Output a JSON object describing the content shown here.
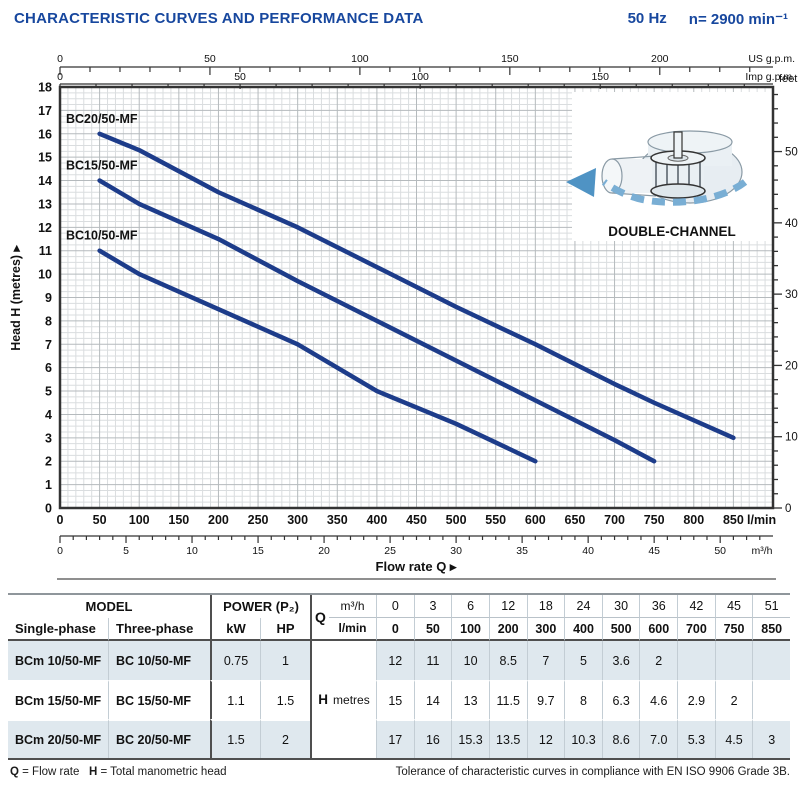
{
  "header": {
    "title": "CHARACTERISTIC CURVES AND PERFORMANCE DATA",
    "frequency": "50 Hz",
    "speed": "n= 2900 min⁻¹"
  },
  "chart_data": {
    "type": "line",
    "title": "",
    "xlabel": "Flow rate  Q",
    "ylabel": "Head H  (metres)",
    "x_unit_primary": "l/min",
    "ylim": [
      0,
      18
    ],
    "xlim_lmin": [
      0,
      900
    ],
    "grid": "on",
    "axes": {
      "bottom_primary": {
        "unit": "l/min",
        "ticks": [
          0,
          50,
          100,
          150,
          200,
          250,
          300,
          350,
          400,
          450,
          500,
          550,
          600,
          650,
          700,
          750,
          800,
          850
        ]
      },
      "bottom_secondary": {
        "unit": "m³/h",
        "ticks": [
          0,
          5,
          10,
          15,
          20,
          25,
          30,
          35,
          40,
          45,
          50
        ]
      },
      "top_primary": {
        "unit": "US g.p.m.",
        "ticks": [
          0,
          50,
          100,
          150,
          200
        ]
      },
      "top_secondary": {
        "unit": "Imp g.p.m.",
        "ticks": [
          0,
          50,
          100,
          150
        ]
      },
      "left": {
        "label": "Head H  (metres)",
        "ticks": [
          0,
          1,
          2,
          3,
          4,
          5,
          6,
          7,
          8,
          9,
          10,
          11,
          12,
          13,
          14,
          15,
          16,
          17,
          18
        ]
      },
      "right": {
        "unit": "feet",
        "ticks": [
          0,
          10,
          20,
          30,
          40,
          50
        ]
      }
    },
    "series": [
      {
        "name": "BC20/50-MF",
        "points": [
          [
            50,
            16
          ],
          [
            100,
            15.3
          ],
          [
            200,
            13.5
          ],
          [
            300,
            12
          ],
          [
            400,
            10.3
          ],
          [
            500,
            8.6
          ],
          [
            600,
            7.0
          ],
          [
            700,
            5.3
          ],
          [
            750,
            4.5
          ],
          [
            850,
            3
          ]
        ]
      },
      {
        "name": "BC15/50-MF",
        "points": [
          [
            50,
            14
          ],
          [
            100,
            13
          ],
          [
            200,
            11.5
          ],
          [
            300,
            9.7
          ],
          [
            400,
            8
          ],
          [
            500,
            6.3
          ],
          [
            600,
            4.6
          ],
          [
            700,
            2.9
          ],
          [
            750,
            2
          ]
        ]
      },
      {
        "name": "BC10/50-MF",
        "points": [
          [
            50,
            11
          ],
          [
            100,
            10
          ],
          [
            200,
            8.5
          ],
          [
            300,
            7
          ],
          [
            400,
            5
          ],
          [
            500,
            3.6
          ],
          [
            600,
            2
          ]
        ]
      }
    ],
    "curve_color": "#1d3c8a",
    "inset_caption": "DOUBLE-CHANNEL"
  },
  "table": {
    "model_header": "MODEL",
    "power_header": "POWER (P₂)",
    "col_single": "Single-phase",
    "col_three": "Three-phase",
    "col_kw": "kW",
    "col_hp": "HP",
    "q_label": "Q",
    "q_unit_top": "m³/h",
    "q_unit_bottom": "l/min",
    "h_label": "H",
    "h_unit": "metres",
    "q_m3h": [
      "0",
      "3",
      "6",
      "12",
      "18",
      "24",
      "30",
      "36",
      "42",
      "45",
      "51"
    ],
    "q_lmin": [
      "0",
      "50",
      "100",
      "200",
      "300",
      "400",
      "500",
      "600",
      "700",
      "750",
      "850"
    ],
    "rows": [
      {
        "single": "BCm 10/50-MF",
        "three": "BC 10/50-MF",
        "kw": "0.75",
        "hp": "1",
        "h": [
          "12",
          "11",
          "10",
          "8.5",
          "7",
          "5",
          "3.6",
          "2",
          "",
          "",
          ""
        ]
      },
      {
        "single": "BCm 15/50-MF",
        "three": "BC 15/50-MF",
        "kw": "1.1",
        "hp": "1.5",
        "h": [
          "15",
          "14",
          "13",
          "11.5",
          "9.7",
          "8",
          "6.3",
          "4.6",
          "2.9",
          "2",
          ""
        ]
      },
      {
        "single": "BCm 20/50-MF",
        "three": "BC 20/50-MF",
        "kw": "1.5",
        "hp": "2",
        "h": [
          "17",
          "16",
          "15.3",
          "13.5",
          "12",
          "10.3",
          "8.6",
          "7.0",
          "5.3",
          "4.5",
          "3"
        ]
      }
    ]
  },
  "footnotes": {
    "q_bold": "Q",
    "q_rest": " = Flow rate",
    "h_bold": "H",
    "h_rest": " = Total manometric head",
    "right": "Tolerance of characteristic curves in compliance with EN ISO 9906 Grade 3B."
  }
}
